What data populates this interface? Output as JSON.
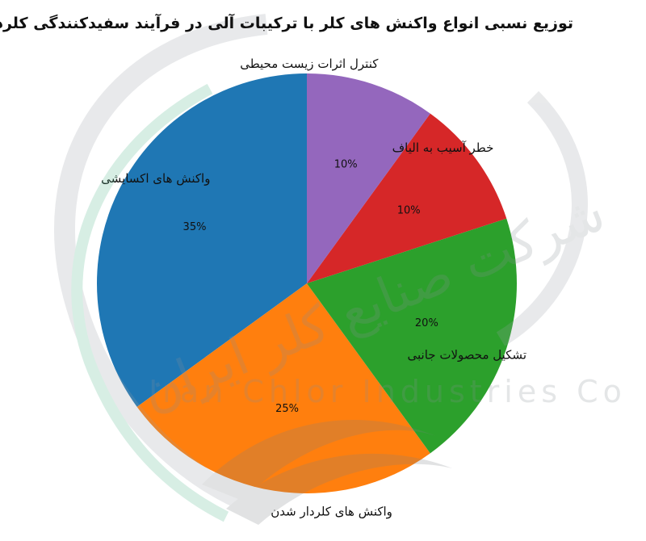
{
  "chart_data": {
    "type": "pie",
    "title": "توزیع نسبی انواع واکنش های کلر با ترکیبات آلی در فرآیند سفیدکنندگی کلردار",
    "start_angle_deg": 90,
    "direction": "counterclockwise",
    "slices": [
      {
        "label": "واکنش های اکسایشی",
        "value": 35,
        "pct_label": "35%",
        "color": "#1f77b4"
      },
      {
        "label": "واکنش های کلردار شدن",
        "value": 25,
        "pct_label": "25%",
        "color": "#ff7f0e"
      },
      {
        "label": "تشکیل محصولات جانبی",
        "value": 20,
        "pct_label": "20%",
        "color": "#2ca02c"
      },
      {
        "label": "خطر آسیب به الیاف",
        "value": 10,
        "pct_label": "10%",
        "color": "#d62728"
      },
      {
        "label": "کنترل اثرات زیست محیطی",
        "value": 10,
        "pct_label": "10%",
        "color": "#9467bd"
      }
    ]
  },
  "watermark": {
    "text_fa": "شرکت صنایع کلر ایران",
    "text_en": "Iran Chlor Industries Co"
  }
}
